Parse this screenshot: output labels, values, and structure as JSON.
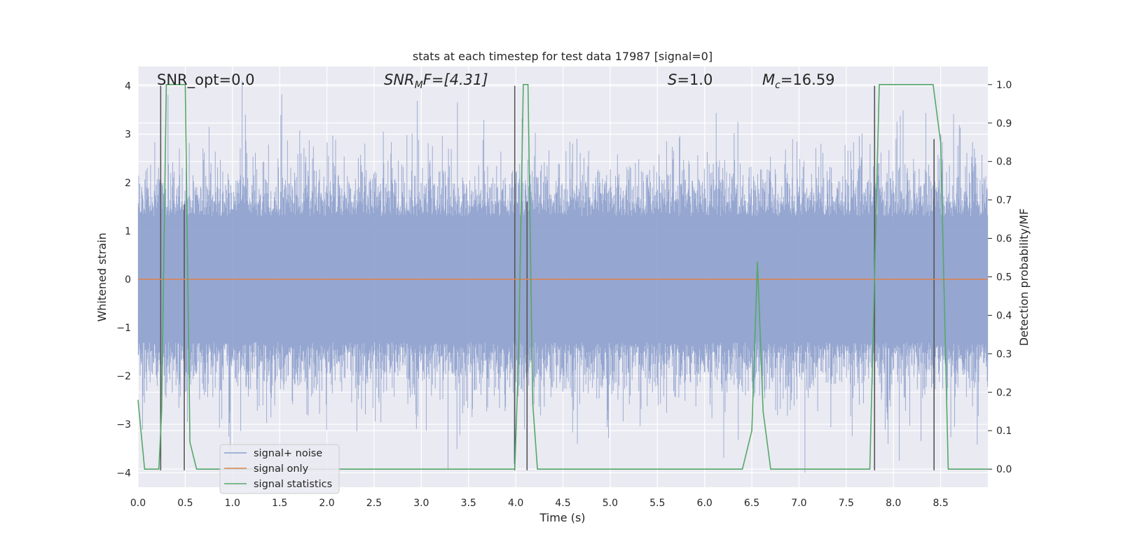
{
  "chart_data": {
    "type": "line",
    "title": "stats at each timestep for test data 17987 [signal=0]",
    "xlabel": "Time (s)",
    "ylabel": "Whitened strain",
    "y2label": "Detection probability/MF",
    "xlim": [
      0.0,
      9.0
    ],
    "ylim": [
      -4.3,
      4.4
    ],
    "y2lim": [
      -0.047,
      1.047
    ],
    "xticks": [
      "0.0",
      "0.5",
      "1.0",
      "1.5",
      "2.0",
      "2.5",
      "3.0",
      "3.5",
      "4.0",
      "4.5",
      "5.0",
      "5.5",
      "6.0",
      "6.5",
      "7.0",
      "7.5",
      "8.0",
      "8.5"
    ],
    "yticks": [
      "4",
      "3",
      "2",
      "1",
      "0",
      "−1",
      "−2",
      "−3",
      "−4"
    ],
    "y2ticks": [
      "1.0",
      "0.9",
      "0.8",
      "0.7",
      "0.6",
      "0.5",
      "0.4",
      "0.3",
      "0.2",
      "0.1",
      "0.0"
    ],
    "grid": true,
    "legend_placement": "lower-left",
    "annotations": {
      "snr_opt": "SNR_opt=0.0",
      "snr_mf": {
        "base": "SNR",
        "sub": "M",
        "rest": "F=[4.31]"
      },
      "s": {
        "italic": "S",
        "rest": "=1.0"
      },
      "mc": {
        "base": "M",
        "sub": "c",
        "rest": "=16.59"
      }
    },
    "series": [
      {
        "name": "signal+ noise",
        "color": "#8c9fcc",
        "kind": "noise",
        "envelope": 1.3
      },
      {
        "name": "signal only",
        "color": "#dd8452",
        "kind": "constant",
        "value": 0
      },
      {
        "name": "signal statistics",
        "color": "#55a868",
        "kind": "probability",
        "x": [
          0.0,
          0.07,
          0.22,
          0.25,
          0.3,
          0.5,
          0.55,
          0.62,
          3.99,
          4.03,
          4.08,
          4.13,
          4.18,
          4.23,
          6.4,
          6.5,
          6.56,
          6.62,
          6.7,
          7.75,
          7.85,
          8.42,
          8.5,
          8.58,
          9.0
        ],
        "y": [
          0.18,
          0.0,
          0.0,
          0.15,
          1.0,
          1.0,
          0.07,
          0.0,
          0.0,
          0.3,
          1.0,
          1.0,
          0.17,
          0.0,
          0.0,
          0.1,
          0.54,
          0.15,
          0.0,
          0.0,
          1.0,
          1.0,
          0.85,
          0.0,
          0.0
        ]
      }
    ],
    "vertical_markers": {
      "color": "#555555",
      "x": [
        0.24,
        0.49,
        3.99,
        4.12,
        7.8,
        8.43
      ],
      "y": [
        [
          -3.95,
          4.0
        ],
        [
          -3.95,
          1.55
        ],
        [
          -3.95,
          4.0
        ],
        [
          -3.95,
          1.6
        ],
        [
          -3.95,
          4.0
        ],
        [
          -3.95,
          2.9
        ]
      ]
    },
    "colors": {
      "background": "#eaeaf2",
      "grid": "#ffffff"
    }
  }
}
